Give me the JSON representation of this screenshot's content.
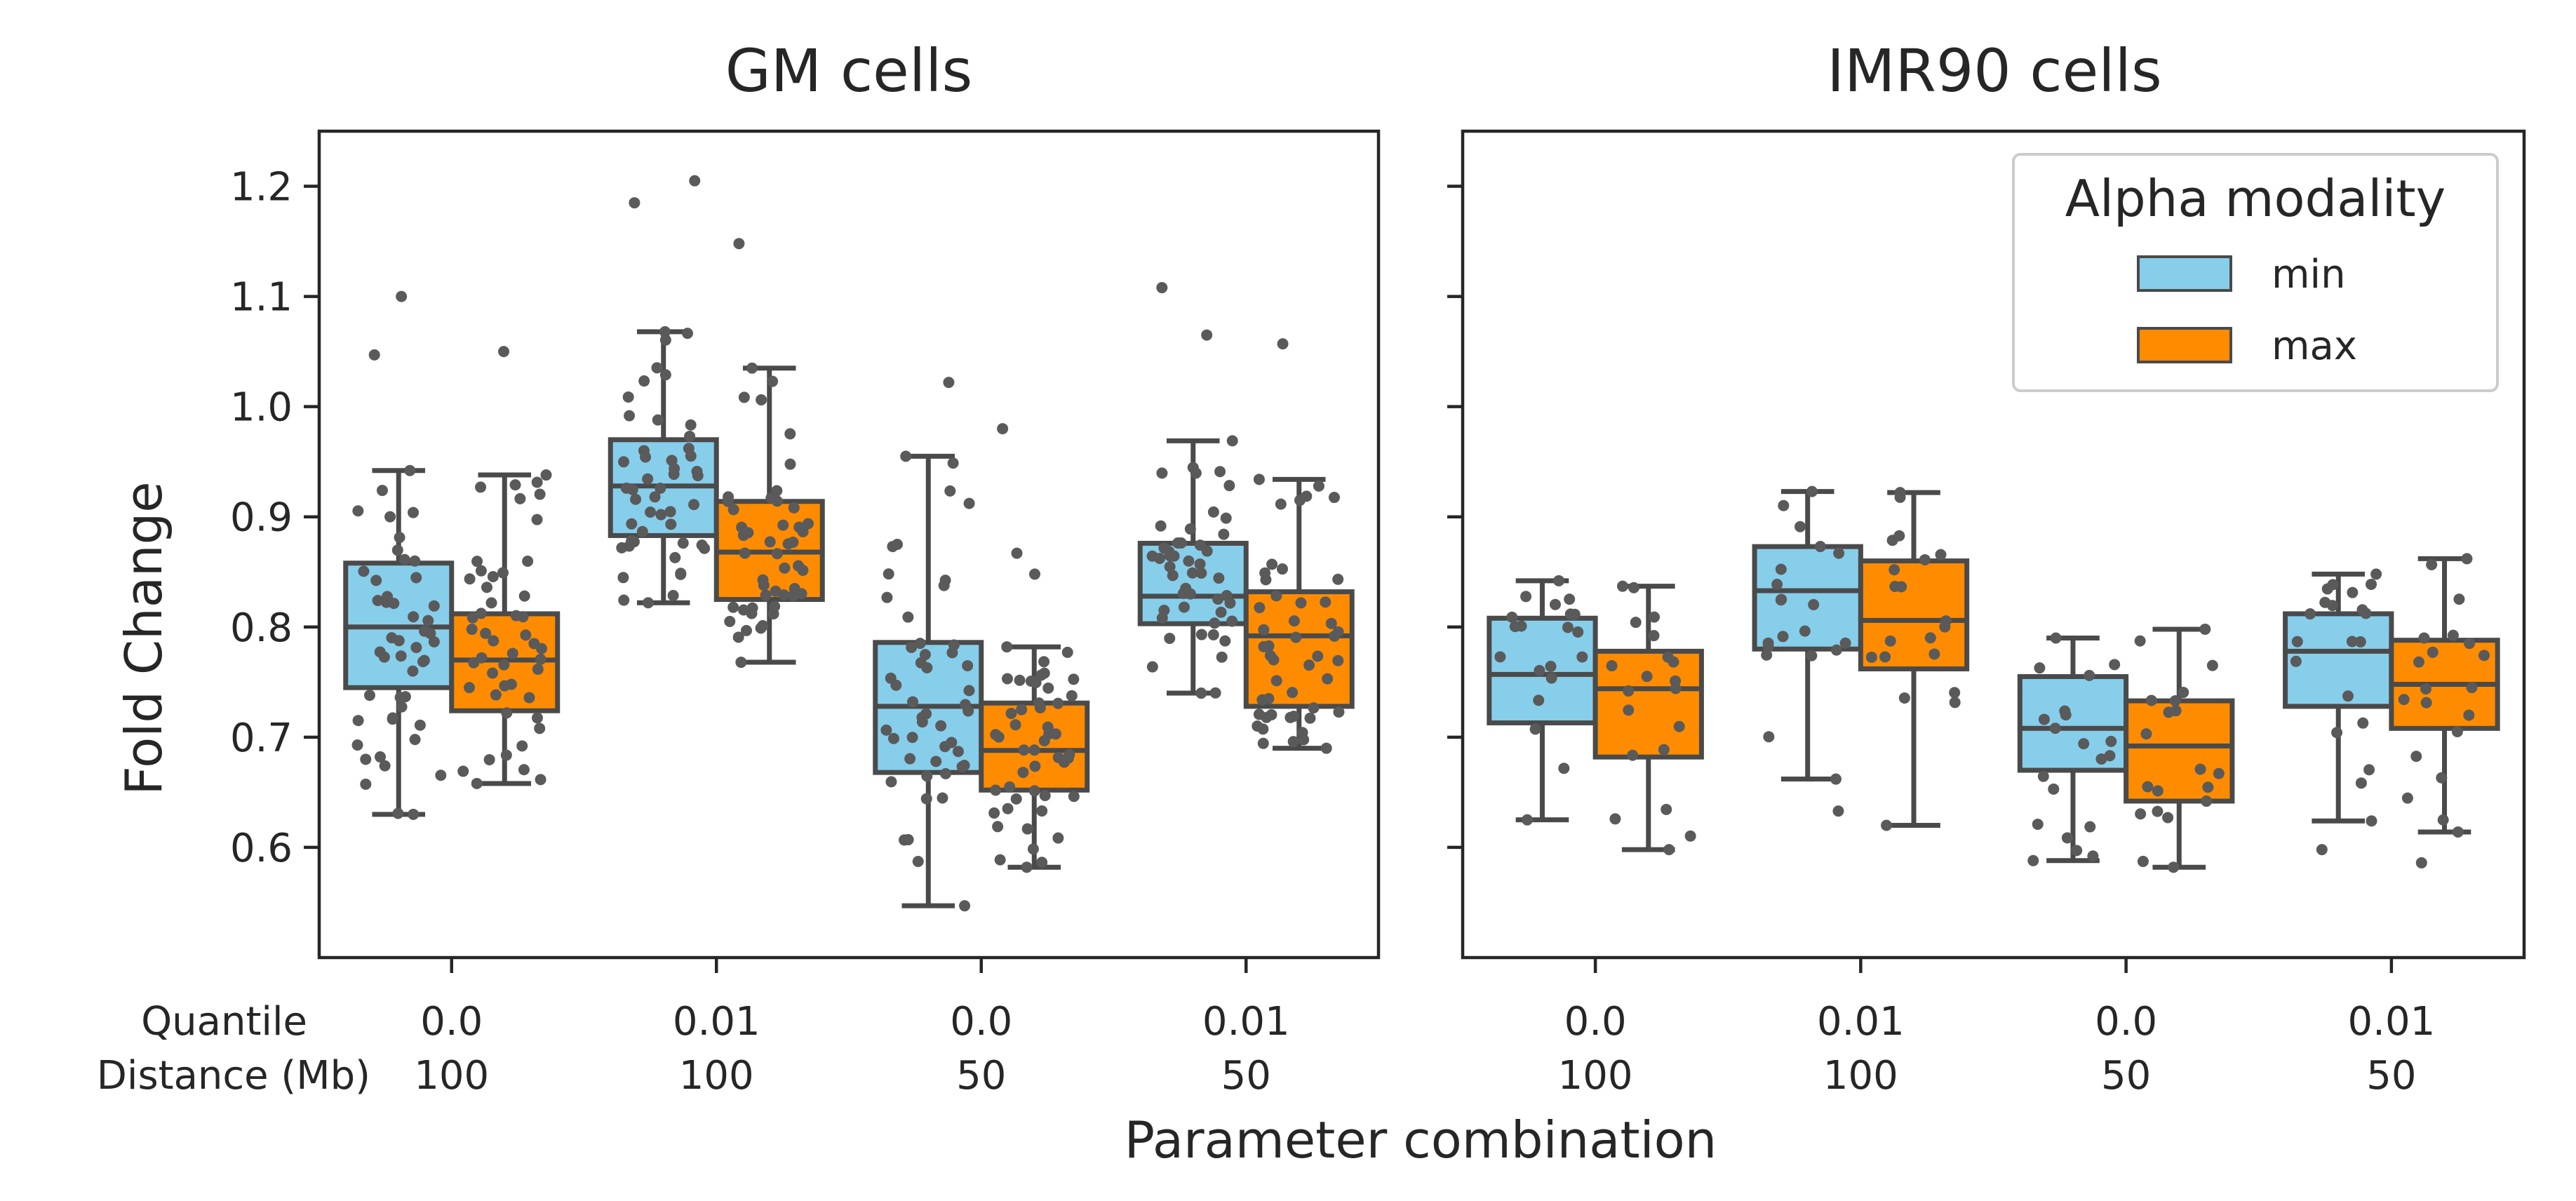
{
  "chart_data": {
    "type": "box",
    "ylabel": "Fold Change",
    "xlabel": "Parameter combination",
    "row_labels": [
      "Quantile",
      "Distance (Mb)"
    ],
    "categories": [
      {
        "quantile": "0.0",
        "distance": "100"
      },
      {
        "quantile": "0.01",
        "distance": "100"
      },
      {
        "quantile": "0.0",
        "distance": "50"
      },
      {
        "quantile": "0.01",
        "distance": "50"
      }
    ],
    "ylim": [
      0.5,
      1.25
    ],
    "yticks": [
      "0.6",
      "0.7",
      "0.8",
      "0.9",
      "1.0",
      "1.1",
      "1.2"
    ],
    "legend": {
      "title": "Alpha modality",
      "entries": [
        {
          "name": "min",
          "color": "#87CEEB"
        },
        {
          "name": "max",
          "color": "#FF8C00"
        }
      ],
      "placement": "top-right of right panel"
    },
    "style": {
      "box_edge": "#4a4a4a",
      "point": "#5a5a5a"
    },
    "panels": [
      {
        "title": "GM cells",
        "series": [
          {
            "name": "min",
            "boxes": [
              {
                "whislo": 0.63,
                "q1": 0.745,
                "med": 0.8,
                "q3": 0.858,
                "whishi": 0.942,
                "fliers": [
                  1.047,
                  1.1
                ]
              },
              {
                "whislo": 0.822,
                "q1": 0.883,
                "med": 0.928,
                "q3": 0.97,
                "whishi": 1.068,
                "fliers": [
                  1.185,
                  1.205
                ]
              },
              {
                "whislo": 0.547,
                "q1": 0.668,
                "med": 0.728,
                "q3": 0.786,
                "whishi": 0.955,
                "fliers": [
                  1.022
                ]
              },
              {
                "whislo": 0.74,
                "q1": 0.803,
                "med": 0.828,
                "q3": 0.876,
                "whishi": 0.969,
                "fliers": [
                  1.065,
                  1.108
                ]
              }
            ]
          },
          {
            "name": "max",
            "boxes": [
              {
                "whislo": 0.658,
                "q1": 0.724,
                "med": 0.77,
                "q3": 0.812,
                "whishi": 0.938,
                "fliers": [
                  1.05
                ]
              },
              {
                "whislo": 0.768,
                "q1": 0.825,
                "med": 0.868,
                "q3": 0.914,
                "whishi": 1.035,
                "fliers": [
                  1.148
                ]
              },
              {
                "whislo": 0.582,
                "q1": 0.652,
                "med": 0.688,
                "q3": 0.731,
                "whishi": 0.782,
                "fliers": [
                  0.848,
                  0.867,
                  0.98
                ]
              },
              {
                "whislo": 0.69,
                "q1": 0.728,
                "med": 0.792,
                "q3": 0.832,
                "whishi": 0.934,
                "fliers": [
                  1.057
                ]
              }
            ]
          }
        ]
      },
      {
        "title": "IMR90 cells",
        "series": [
          {
            "name": "min",
            "boxes": [
              {
                "whislo": 0.625,
                "q1": 0.713,
                "med": 0.757,
                "q3": 0.808,
                "whishi": 0.842,
                "fliers": []
              },
              {
                "whislo": 0.662,
                "q1": 0.78,
                "med": 0.833,
                "q3": 0.873,
                "whishi": 0.923,
                "fliers": [
                  0.633
                ]
              },
              {
                "whislo": 0.588,
                "q1": 0.67,
                "med": 0.708,
                "q3": 0.755,
                "whishi": 0.79,
                "fliers": []
              },
              {
                "whislo": 0.624,
                "q1": 0.728,
                "med": 0.778,
                "q3": 0.812,
                "whishi": 0.848,
                "fliers": [
                  0.598
                ]
              }
            ]
          },
          {
            "name": "max",
            "boxes": [
              {
                "whislo": 0.598,
                "q1": 0.682,
                "med": 0.744,
                "q3": 0.778,
                "whishi": 0.837,
                "fliers": []
              },
              {
                "whislo": 0.62,
                "q1": 0.762,
                "med": 0.806,
                "q3": 0.86,
                "whishi": 0.922,
                "fliers": []
              },
              {
                "whislo": 0.582,
                "q1": 0.642,
                "med": 0.692,
                "q3": 0.733,
                "whishi": 0.798,
                "fliers": []
              },
              {
                "whislo": 0.614,
                "q1": 0.708,
                "med": 0.748,
                "q3": 0.788,
                "whishi": 0.862,
                "fliers": [
                  0.586
                ]
              }
            ]
          }
        ]
      }
    ]
  }
}
